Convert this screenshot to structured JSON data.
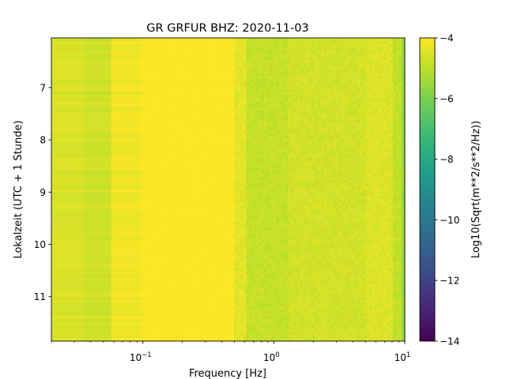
{
  "chart_data": {
    "type": "heatmap",
    "title": "GR GRFUR  BHZ: 2020-11-03",
    "xlabel": "Frequency [Hz]",
    "ylabel": "Lokalzeit (UTC + 1 Stunde)",
    "colorbar_label": "Log10(Sqrt(m**2/s**2/Hz))",
    "colormap": "viridis",
    "x_scale": "log",
    "xlim": [
      0.02,
      10
    ],
    "ylim": [
      11.85,
      6.05
    ],
    "y_inverted": true,
    "clim": [
      -14,
      -4
    ],
    "x_ticks": [
      {
        "value": 0.1,
        "base": "10",
        "exp": "−1"
      },
      {
        "value": 1,
        "base": "10",
        "exp": "0"
      },
      {
        "value": 10,
        "base": "10",
        "exp": "1"
      }
    ],
    "y_ticks": [
      {
        "value": 7,
        "label": "7"
      },
      {
        "value": 8,
        "label": "8"
      },
      {
        "value": 9,
        "label": "9"
      },
      {
        "value": 10,
        "label": "10"
      },
      {
        "value": 11,
        "label": "11"
      }
    ],
    "colorbar_ticks": [
      {
        "value": -4,
        "label": "−4"
      },
      {
        "value": -6,
        "label": "−6"
      },
      {
        "value": -8,
        "label": "−8"
      },
      {
        "value": -10,
        "label": "−10"
      },
      {
        "value": -12,
        "label": "−12"
      },
      {
        "value": -14,
        "label": "−14"
      }
    ],
    "frequency_bands": [
      {
        "f_min": 0.02,
        "f_max": 0.036,
        "level": -4.55
      },
      {
        "f_min": 0.036,
        "f_max": 0.058,
        "level": -4.7
      },
      {
        "f_min": 0.058,
        "f_max": 0.095,
        "level": -4.2
      },
      {
        "f_min": 0.095,
        "f_max": 0.5,
        "level": -4.05
      },
      {
        "f_min": 0.5,
        "f_max": 0.6,
        "level": -4.4
      },
      {
        "f_min": 0.6,
        "f_max": 1.3,
        "level": -4.85
      },
      {
        "f_min": 1.3,
        "f_max": 5.0,
        "level": -4.65
      },
      {
        "f_min": 5.0,
        "f_max": 8.0,
        "level": -4.5
      },
      {
        "f_min": 8.0,
        "f_max": 9.3,
        "level": -4.9
      },
      {
        "f_min": 9.3,
        "f_max": 10.0,
        "level": -5.6
      }
    ],
    "time_rows": 96,
    "freq_columns": 118
  }
}
